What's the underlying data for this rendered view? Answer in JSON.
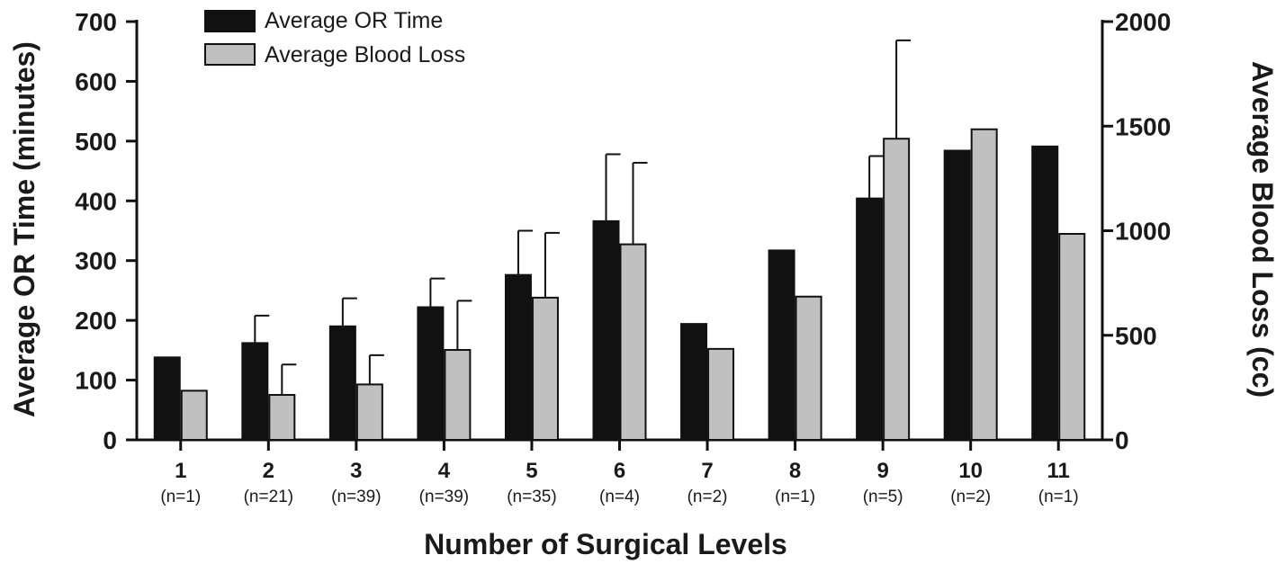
{
  "chart_data": {
    "type": "bar",
    "title": "",
    "xlabel": "Number of Surgical Levels",
    "ylabel": "Average OR Time (minutes)",
    "y2label": "Average Blood Loss  (cc)",
    "ylim": [
      0,
      700
    ],
    "y2lim": [
      0,
      2000
    ],
    "yticks": [
      "0",
      "100",
      "200",
      "300",
      "400",
      "500",
      "600",
      "700"
    ],
    "y2ticks": [
      "0",
      "500",
      "1000",
      "1500",
      "2000"
    ],
    "categories": [
      "1",
      "2",
      "3",
      "4",
      "5",
      "6",
      "7",
      "8",
      "9",
      "10",
      "11"
    ],
    "sample_sizes": [
      "(n=1)",
      "(n=21)",
      "(n=39)",
      "(n=39)",
      "(n=35)",
      "(n=4)",
      "(n=2)",
      "(n=1)",
      "(n=5)",
      "(n=2)",
      "(n=1)"
    ],
    "legend_position": "top-left",
    "series": [
      {
        "name": "Average OR Time",
        "axis": "left",
        "color": "#111111",
        "values": [
          138,
          162,
          190,
          222,
          276,
          366,
          194,
          317,
          404,
          484,
          491
        ],
        "error_upper": [
          null,
          208,
          237,
          270,
          350,
          478,
          null,
          null,
          475,
          null,
          null
        ]
      },
      {
        "name": "Average Blood Loss",
        "axis": "right",
        "color": "#c0c0c0",
        "values": [
          235,
          215,
          265,
          430,
          680,
          935,
          435,
          685,
          1440,
          1485,
          985
        ],
        "error_upper": [
          null,
          360,
          405,
          665,
          990,
          1325,
          null,
          null,
          1910,
          null,
          null
        ]
      }
    ]
  }
}
